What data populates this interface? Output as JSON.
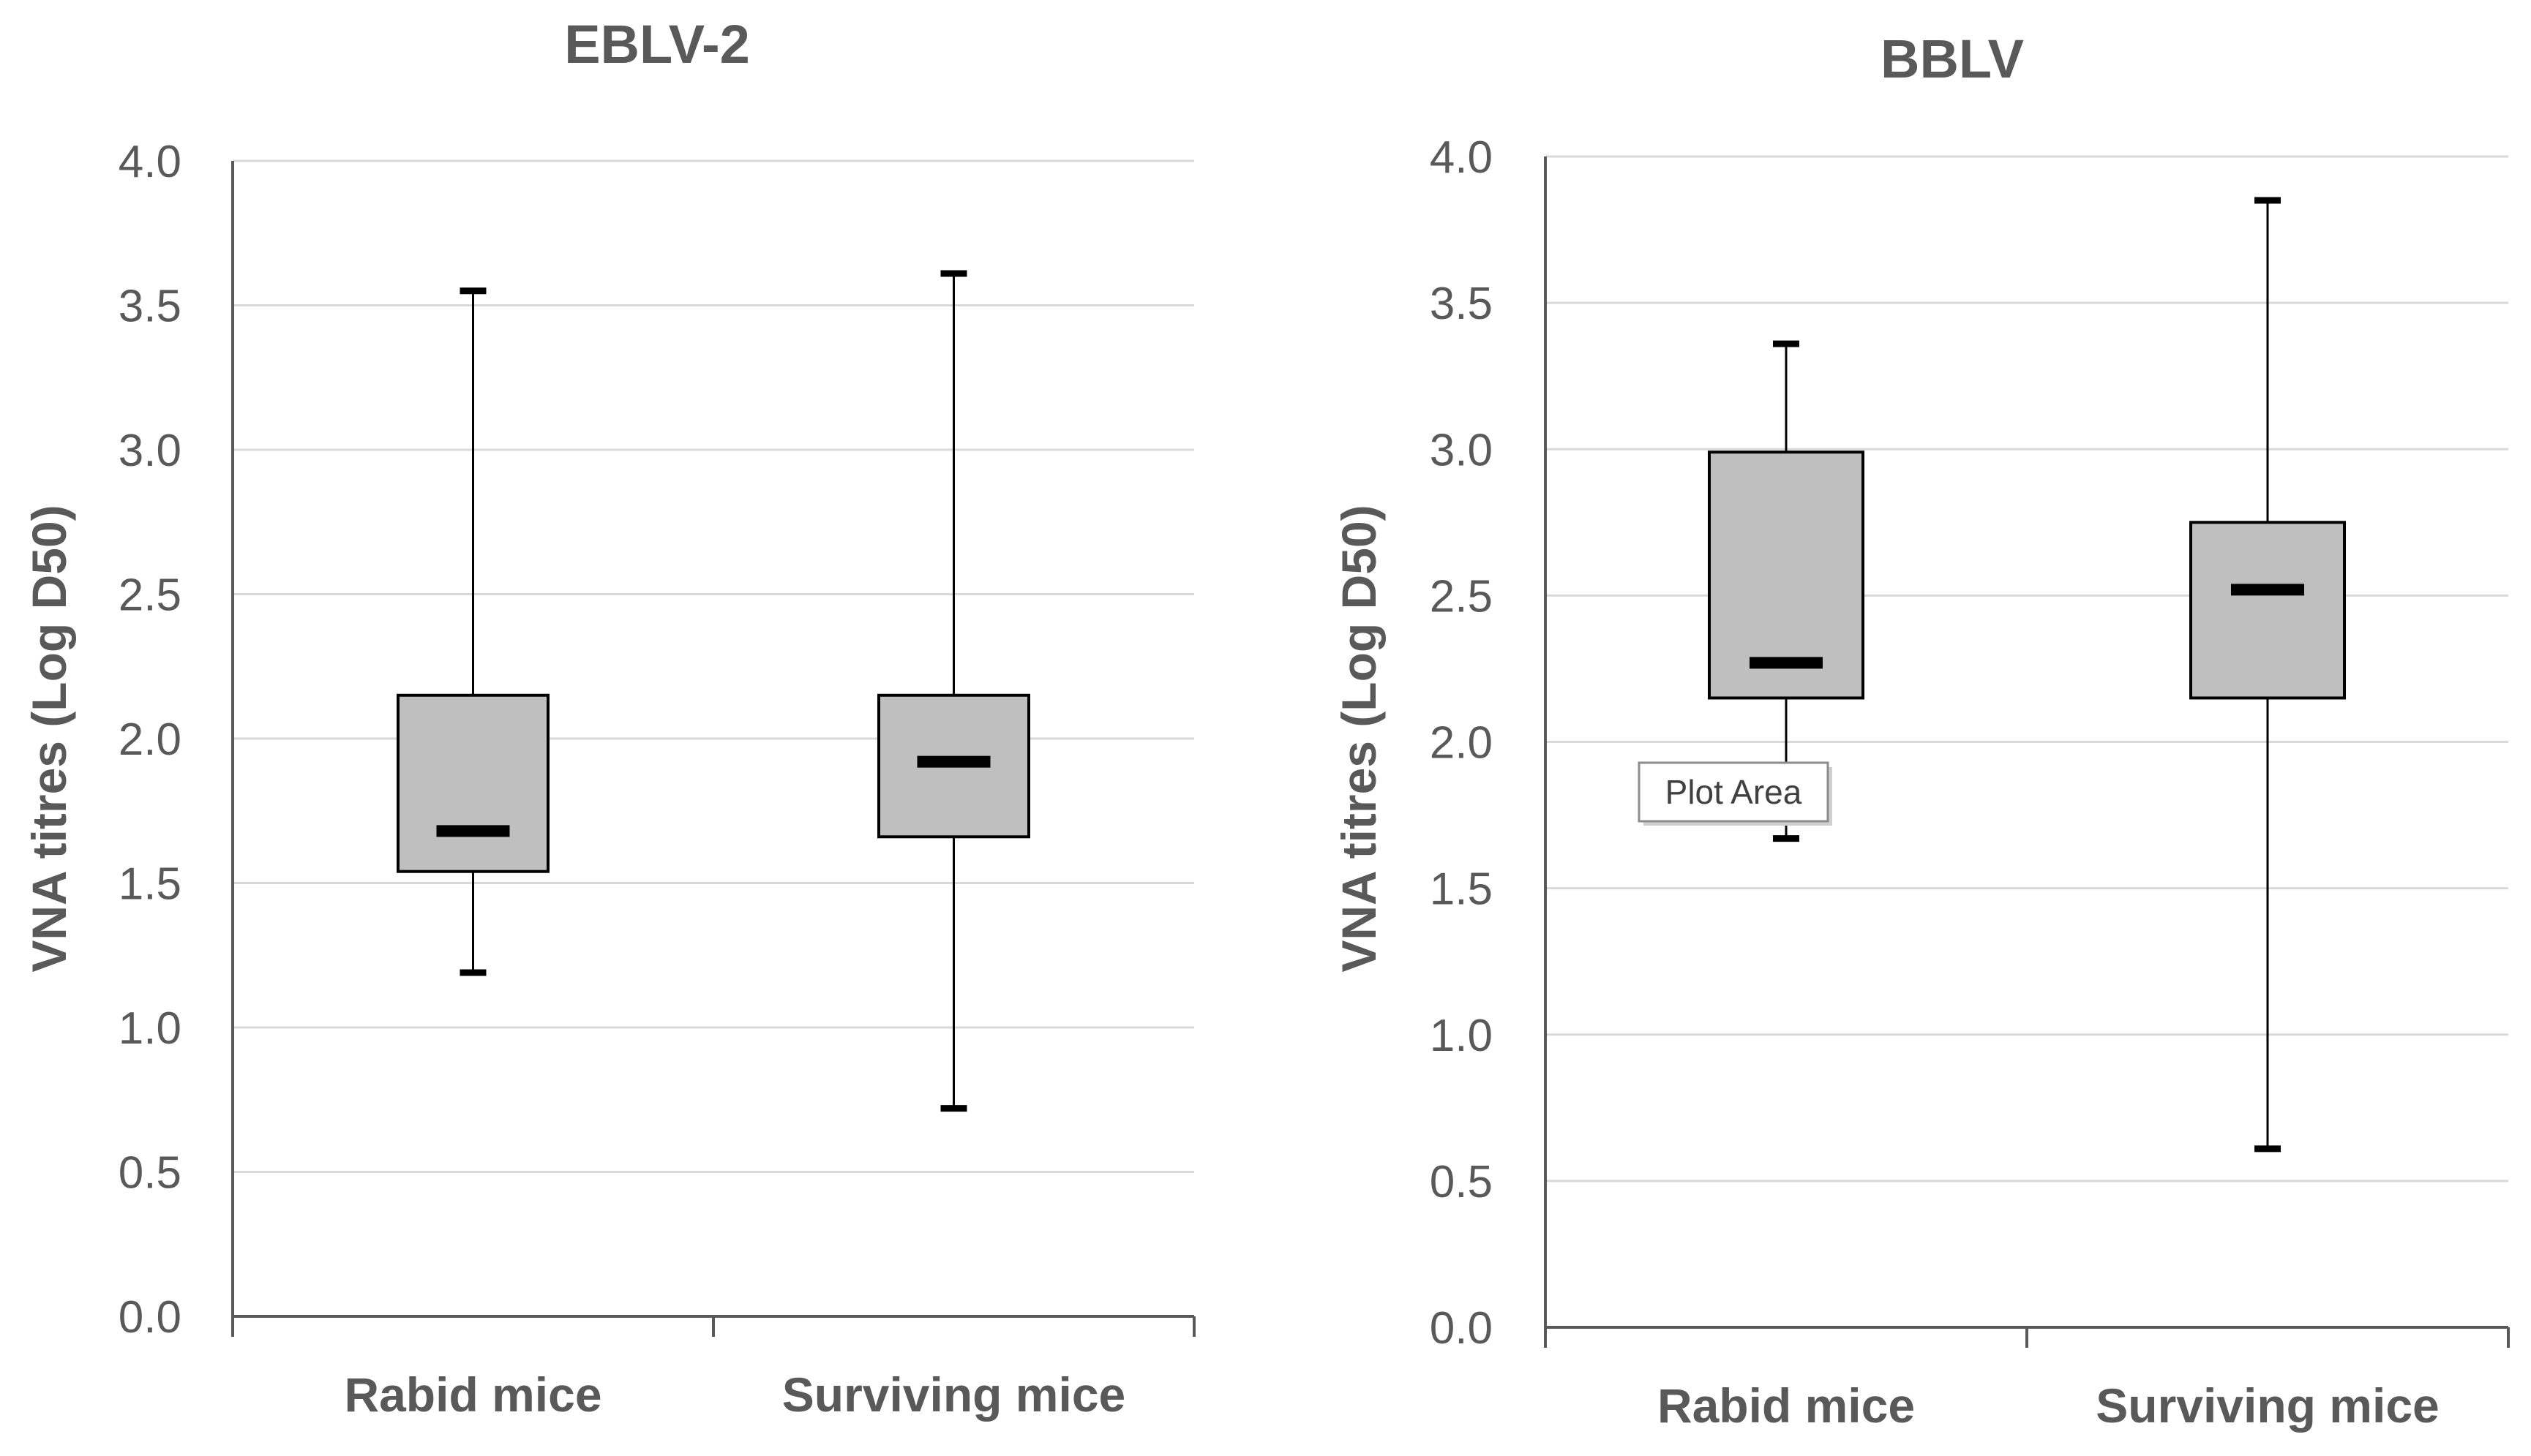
{
  "colors": {
    "box_fill": "#bfbfbf",
    "text": "#595959",
    "gridline": "#d9d9d9"
  },
  "chart_data": [
    {
      "type": "boxplot",
      "title": "EBLV-2",
      "xlabel": "",
      "ylabel": "VNA titres (Log D50)",
      "ylim": [
        0.0,
        4.0
      ],
      "yticks": [
        "0.0",
        "0.5",
        "1.0",
        "1.5",
        "2.0",
        "2.5",
        "3.0",
        "3.5",
        "4.0"
      ],
      "categories": [
        "Rabid mice",
        "Surviving mice"
      ],
      "series": [
        {
          "name": "Rabid mice",
          "min": 1.19,
          "q1": 1.54,
          "median": 1.68,
          "q3": 2.15,
          "max": 3.55
        },
        {
          "name": "Surviving mice",
          "min": 0.72,
          "q1": 1.66,
          "median": 1.92,
          "q3": 2.15,
          "max": 3.61
        }
      ]
    },
    {
      "type": "boxplot",
      "title": "BBLV",
      "xlabel": "",
      "ylabel": "VNA titres (Log D50)",
      "ylim": [
        0.0,
        4.0
      ],
      "yticks": [
        "0.0",
        "0.5",
        "1.0",
        "1.5",
        "2.0",
        "2.5",
        "3.0",
        "3.5",
        "4.0"
      ],
      "categories": [
        "Rabid mice",
        "Surviving mice"
      ],
      "series": [
        {
          "name": "Rabid mice",
          "min": 1.67,
          "q1": 2.15,
          "median": 2.27,
          "q3": 2.99,
          "max": 3.36
        },
        {
          "name": "Surviving mice",
          "min": 0.61,
          "q1": 2.15,
          "median": 2.52,
          "q3": 2.75,
          "max": 3.85
        }
      ],
      "tooltip": "Plot Area"
    }
  ]
}
